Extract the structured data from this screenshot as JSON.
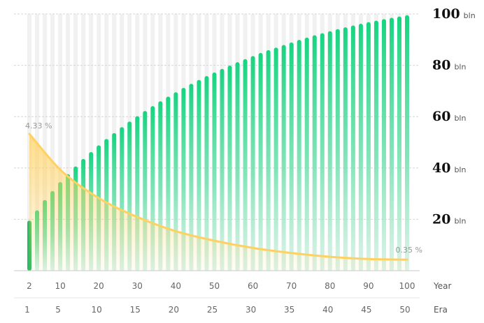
{
  "chart_data": {
    "type": "bar",
    "y_axis": {
      "ticks": [
        20,
        40,
        60,
        80,
        100
      ],
      "unit": "bln",
      "ylim": [
        0,
        100
      ],
      "position": "right",
      "grid": true
    },
    "year_axis": {
      "label": "Year",
      "ticks": [
        "2",
        "10",
        "20",
        "30",
        "40",
        "50",
        "60",
        "70",
        "80",
        "90",
        "100"
      ],
      "tick_years": [
        2,
        10,
        20,
        30,
        40,
        50,
        60,
        70,
        80,
        90,
        100
      ]
    },
    "era_axis": {
      "label": "Era",
      "ticks": [
        "1",
        "5",
        "10",
        "15",
        "20",
        "25",
        "30",
        "35",
        "40",
        "45",
        "50"
      ],
      "tick_years": [
        2,
        10,
        20,
        30,
        40,
        50,
        60,
        70,
        80,
        90,
        100
      ]
    },
    "supply_series": {
      "x_years": [
        2,
        4,
        6,
        8,
        10,
        12,
        14,
        16,
        18,
        20,
        22,
        24,
        26,
        28,
        30,
        32,
        34,
        36,
        38,
        40,
        42,
        44,
        46,
        48,
        50,
        52,
        54,
        56,
        58,
        60,
        62,
        64,
        66,
        68,
        70,
        72,
        74,
        76,
        78,
        80,
        82,
        84,
        86,
        88,
        90,
        92,
        94,
        96,
        98,
        100
      ],
      "values": [
        19.5,
        23.5,
        27.5,
        31,
        34.5,
        37.6,
        40.6,
        43.5,
        46.2,
        48.8,
        51.3,
        53.6,
        55.9,
        58.1,
        60.2,
        62.2,
        64.1,
        66,
        67.8,
        69.5,
        71.2,
        72.8,
        74.3,
        75.8,
        77.2,
        78.6,
        79.9,
        81.2,
        82.4,
        83.6,
        84.8,
        85.9,
        86.9,
        87.9,
        88.9,
        89.9,
        90.8,
        91.7,
        92.5,
        93.3,
        94.1,
        94.8,
        95.5,
        96.2,
        96.8,
        97.4,
        98,
        98.5,
        99,
        99.5
      ],
      "color": "#16d47f"
    },
    "rate_series": {
      "x_years": [
        2,
        10,
        20,
        30,
        40,
        50,
        60,
        70,
        80,
        90,
        100
      ],
      "values": [
        4.33,
        3.2,
        2.3,
        1.7,
        1.25,
        0.95,
        0.72,
        0.56,
        0.44,
        0.37,
        0.35
      ],
      "unit": "%",
      "color": "#ffd160",
      "start_label": "4.33 %",
      "end_label": "0.35 %"
    }
  }
}
